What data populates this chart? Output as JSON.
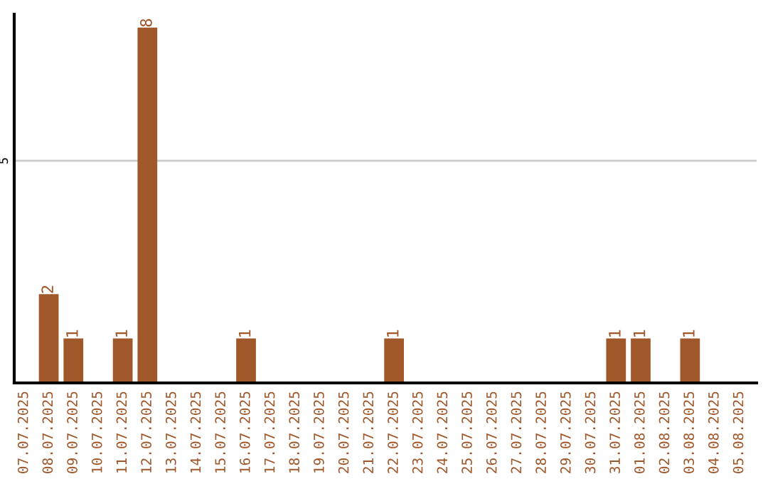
{
  "chart_data": {
    "type": "bar",
    "categories": [
      "07.07.2025",
      "08.07.2025",
      "09.07.2025",
      "10.07.2025",
      "11.07.2025",
      "12.07.2025",
      "13.07.2025",
      "14.07.2025",
      "15.07.2025",
      "16.07.2025",
      "17.07.2025",
      "18.07.2025",
      "19.07.2025",
      "20.07.2025",
      "21.07.2025",
      "22.07.2025",
      "23.07.2025",
      "24.07.2025",
      "25.07.2025",
      "26.07.2025",
      "27.07.2025",
      "28.07.2025",
      "29.07.2025",
      "30.07.2025",
      "31.07.2025",
      "01.08.2025",
      "02.08.2025",
      "03.08.2025",
      "04.08.2025",
      "05.08.2025"
    ],
    "values": [
      0,
      2,
      1,
      0,
      1,
      8,
      0,
      0,
      0,
      1,
      0,
      0,
      0,
      0,
      0,
      1,
      0,
      0,
      0,
      0,
      0,
      0,
      0,
      0,
      1,
      1,
      0,
      1,
      0,
      0
    ],
    "value_labels": [
      null,
      "2",
      "1",
      null,
      "1",
      "8",
      null,
      null,
      null,
      "1",
      null,
      null,
      null,
      null,
      null,
      "1",
      null,
      null,
      null,
      null,
      null,
      null,
      null,
      null,
      "1",
      "1",
      null,
      "1",
      null,
      null
    ],
    "color": "#a0572a",
    "ylim": [
      0,
      8.3
    ],
    "yticks": [
      5
    ],
    "grid": "y",
    "legend": false
  }
}
